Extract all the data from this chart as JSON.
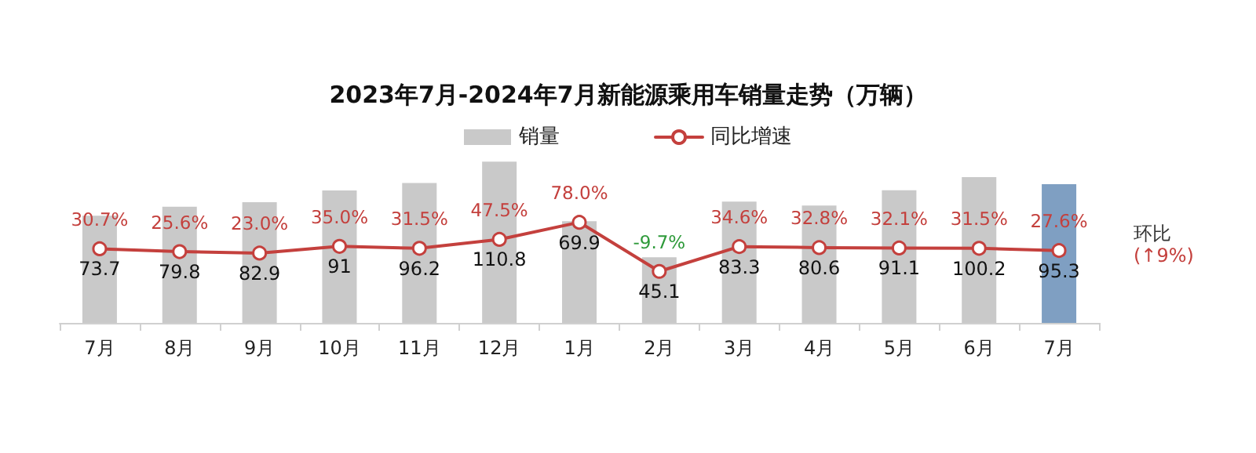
{
  "chart_data": {
    "type": "bar",
    "title": "2023年7月-2024年7月新能源乘用车销量走势（万辆）",
    "categories": [
      "7月",
      "8月",
      "9月",
      "10月",
      "11月",
      "12月",
      "1月",
      "2月",
      "3月",
      "4月",
      "5月",
      "6月",
      "7月"
    ],
    "series": [
      {
        "name": "销量",
        "color": "#c9c9c9",
        "colors": [
          "#c9c9c9",
          "#c9c9c9",
          "#c9c9c9",
          "#c9c9c9",
          "#c9c9c9",
          "#c9c9c9",
          "#c9c9c9",
          "#c9c9c9",
          "#c9c9c9",
          "#c9c9c9",
          "#c9c9c9",
          "#c9c9c9",
          "#7f9fc2"
        ],
        "values": [
          73.7,
          79.8,
          82.9,
          91,
          96.2,
          110.8,
          69.9,
          45.1,
          83.3,
          80.6,
          91.1,
          100.2,
          95.3
        ],
        "value_labels": [
          "73.7",
          "79.8",
          "82.9",
          "91",
          "96.2",
          "110.8",
          "69.9",
          "45.1",
          "83.3",
          "80.6",
          "91.1",
          "100.2",
          "95.3"
        ]
      },
      {
        "name": "同比增速",
        "type": "line",
        "axis": "y2",
        "color": "#c4403d",
        "values": [
          30.7,
          25.6,
          23.0,
          35.0,
          31.5,
          47.5,
          78.0,
          -9.7,
          34.6,
          32.8,
          32.1,
          31.5,
          27.6
        ],
        "value_labels": [
          "30.7%",
          "25.6%",
          "23.0%",
          "35.0%",
          "31.5%",
          "47.5%",
          "78.0%",
          "-9.7%",
          "34.6%",
          "32.8%",
          "32.1%",
          "31.5%",
          "27.6%"
        ]
      }
    ],
    "annotations": [
      "环比",
      "(↑9%)"
    ],
    "legend": "top",
    "marker": "circle"
  }
}
